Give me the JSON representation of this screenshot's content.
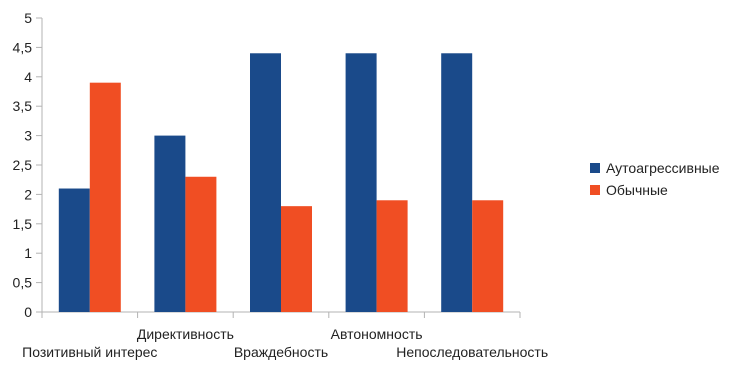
{
  "chart_data": {
    "type": "bar",
    "categories": [
      "Позитивный интерес",
      "Директивность",
      "Враждебность",
      "Автономность",
      "Непоследовательность"
    ],
    "series": [
      {
        "name": "Аутоагрессивные",
        "values": [
          2.1,
          3.0,
          4.4,
          4.4,
          4.4
        ],
        "color": "#1a4a8a"
      },
      {
        "name": "Обычные",
        "values": [
          3.9,
          2.3,
          1.8,
          1.9,
          1.9
        ],
        "color": "#f04e23"
      }
    ],
    "ylim": [
      0,
      5
    ],
    "yticks": [
      "0",
      "0,5",
      "1",
      "1,5",
      "2",
      "2,5",
      "3",
      "3,5",
      "4",
      "4,5",
      "5"
    ],
    "grid": false,
    "legend_position": "right"
  }
}
